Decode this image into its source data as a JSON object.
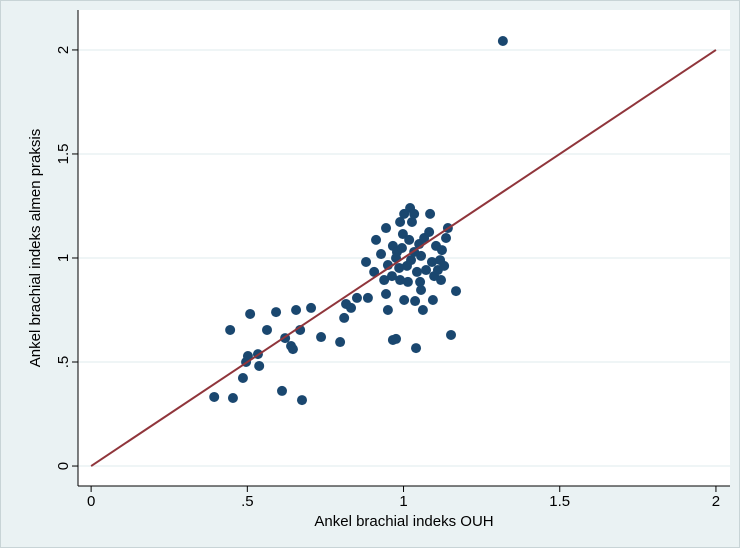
{
  "chart_data": {
    "type": "scatter",
    "x_label": "Ankel brachial indeks OUH",
    "y_label": "Ankel brachial indeks almen praksis",
    "xlim": [
      -0.042,
      2.045
    ],
    "ylim": [
      -0.096,
      2.192
    ],
    "xticks": [
      0,
      {
        "value": 0.5,
        "label": ".5"
      },
      1,
      1.5,
      2
    ],
    "yticks": [
      0,
      {
        "value": 0.5,
        "label": ".5"
      },
      1,
      1.5,
      2
    ],
    "grid": true,
    "series": [
      {
        "color": "#1a476f",
        "x": [
          1.318,
          0.394,
          0.454,
          0.486,
          0.496,
          0.502,
          0.534,
          0.538,
          0.445,
          0.509,
          0.563,
          0.592,
          0.611,
          0.621,
          0.64,
          0.646,
          0.656,
          0.669,
          0.675,
          0.704,
          0.736,
          0.797,
          0.81,
          0.816,
          0.832,
          0.851,
          0.886,
          0.88,
          0.906,
          0.912,
          0.944,
          0.928,
          0.95,
          0.938,
          0.944,
          0.95,
          0.966,
          0.966,
          0.976,
          0.986,
          0.989,
          0.998,
          1.002,
          1.002,
          1.021,
          1.024,
          1.027,
          1.034,
          1.037,
          1.04,
          1.043,
          1.05,
          1.056,
          1.062,
          1.056,
          1.066,
          1.072,
          1.082,
          1.085,
          1.091,
          1.098,
          1.104,
          1.11,
          1.117,
          1.12,
          1.123,
          1.136,
          1.142,
          1.152,
          1.168,
          0.979,
          0.995,
          1.011,
          1.034,
          1.018,
          0.976,
          1.053,
          0.963,
          1.014,
          1.13,
          0.989,
          1.094
        ],
        "y": [
          2.043,
          0.332,
          0.327,
          0.423,
          0.5,
          0.529,
          0.538,
          0.481,
          0.654,
          0.731,
          0.654,
          0.74,
          0.361,
          0.615,
          0.577,
          0.562,
          0.75,
          0.654,
          0.317,
          0.76,
          0.62,
          0.596,
          0.712,
          0.779,
          0.76,
          0.808,
          0.808,
          0.981,
          0.933,
          1.087,
          1.144,
          1.019,
          0.966,
          0.894,
          0.827,
          0.75,
          1.058,
          0.606,
          0.611,
          0.952,
          0.894,
          1.115,
          0.798,
          1.212,
          1.24,
          0.99,
          1.173,
          1.212,
          0.793,
          0.567,
          0.933,
          1.067,
          1.01,
          0.75,
          0.846,
          1.096,
          0.942,
          1.125,
          1.212,
          0.981,
          0.913,
          1.058,
          0.942,
          0.99,
          0.894,
          1.038,
          1.096,
          1.144,
          0.63,
          0.841,
          1.029,
          1.048,
          0.962,
          1.029,
          1.087,
          1.0,
          0.885,
          0.913,
          0.885,
          0.962,
          1.173,
          0.798
        ]
      }
    ],
    "line": {
      "color": "#90353b",
      "x": [
        0,
        2
      ],
      "y": [
        0,
        2
      ]
    }
  }
}
